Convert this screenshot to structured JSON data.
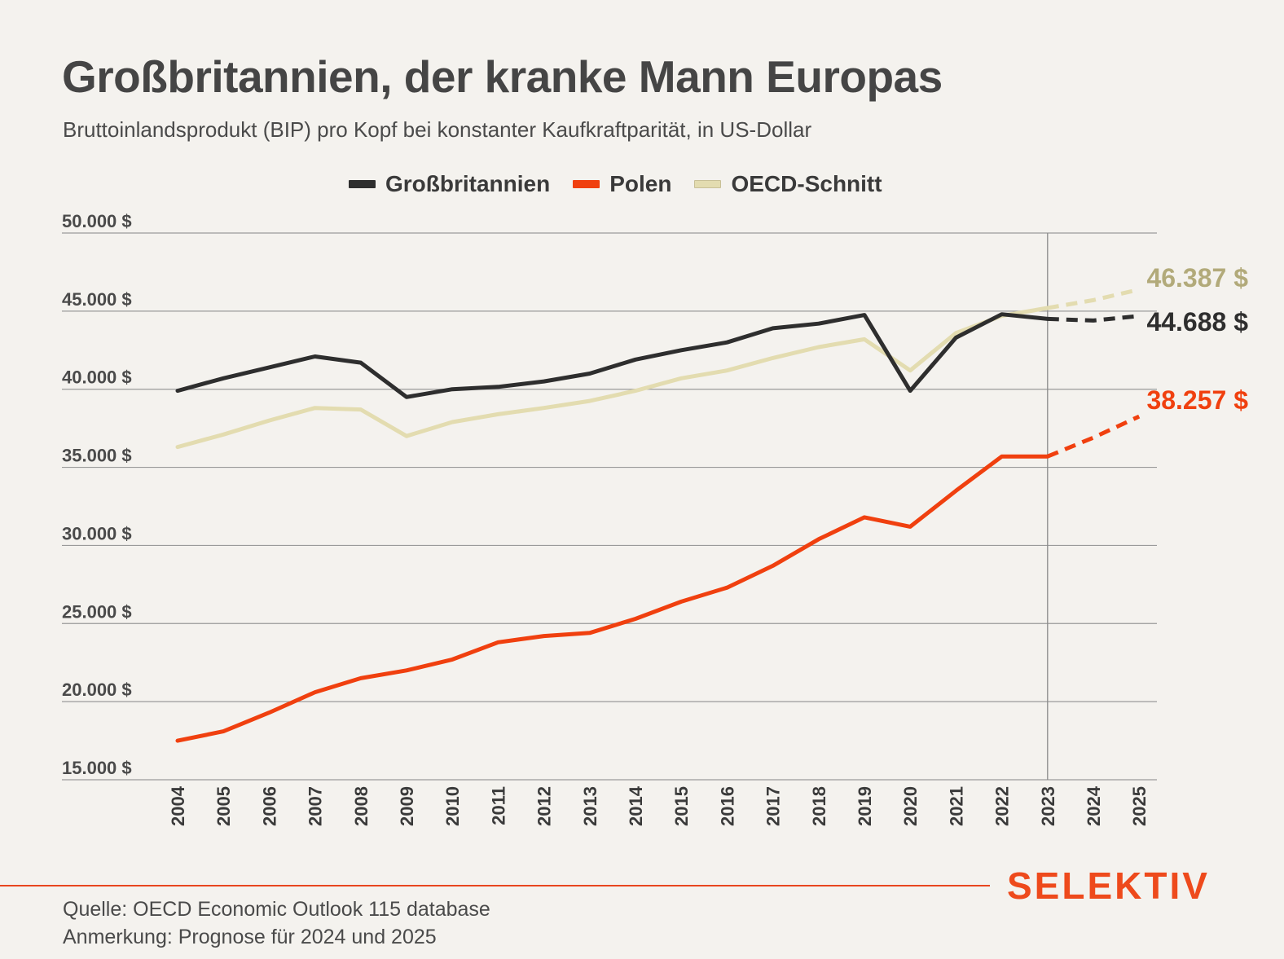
{
  "header": {
    "title": "Großbritannien, der kranke Mann Europas",
    "subtitle": "Bruttoinlandsprodukt (BIP) pro Kopf bei konstanter Kaufkraftparität, in US-Dollar"
  },
  "footer": {
    "brand": "SELEKTIV",
    "source": "Quelle: OECD Economic Outlook 115 database",
    "note": "Anmerkung: Prognose für 2024 und 2025"
  },
  "colors": {
    "uk": "#2e2e2e",
    "polen": "#f0400f",
    "oecd": "#e3dcb0",
    "oecd_label": "#b2aa7a",
    "grid": "#9a9a9a",
    "accent": "#e8461f"
  },
  "chart_data": {
    "type": "line",
    "title": "Großbritannien, der kranke Mann Europas",
    "subtitle": "Bruttoinlandsprodukt (BIP) pro Kopf bei konstanter Kaufkraftparität, in US-Dollar",
    "x": [
      "2004",
      "2005",
      "2006",
      "2007",
      "2008",
      "2009",
      "2010",
      "2011",
      "2012",
      "2013",
      "2014",
      "2015",
      "2016",
      "2017",
      "2018",
      "2019",
      "2020",
      "2021",
      "2022",
      "2023",
      "2024",
      "2025"
    ],
    "ylim": [
      15000,
      50000
    ],
    "yticks": [
      50000,
      45000,
      40000,
      35000,
      30000,
      25000,
      20000,
      15000
    ],
    "ytick_labels": [
      "50.000 $",
      "45.000 $",
      "40.000 $",
      "35.000 $",
      "30.000 $",
      "25.000 $",
      "20.000 $",
      "15.000 $"
    ],
    "forecast_from": "2023",
    "forecast_years": [
      "2024",
      "2025"
    ],
    "legend_position": "top",
    "grid": true,
    "series": [
      {
        "name": "Großbritannien",
        "color_key": "uk",
        "values": [
          39900,
          40700,
          41400,
          42100,
          41700,
          39500,
          40000,
          40150,
          40500,
          41000,
          41900,
          42500,
          43000,
          43900,
          44200,
          44750,
          39900,
          43300,
          44800,
          44500,
          44400,
          44688
        ],
        "end_label": "44.688 $"
      },
      {
        "name": "Polen",
        "color_key": "polen",
        "values": [
          17500,
          18100,
          19300,
          20600,
          21500,
          22000,
          22700,
          23800,
          24200,
          24400,
          25300,
          26400,
          27300,
          28700,
          30400,
          31800,
          31200,
          33500,
          35700,
          35700,
          36900,
          38257
        ],
        "end_label": "38.257 $"
      },
      {
        "name": "OECD-Schnitt",
        "color_key": "oecd",
        "values": [
          36300,
          37100,
          38000,
          38800,
          38700,
          37000,
          37900,
          38400,
          38800,
          39250,
          39900,
          40700,
          41200,
          42000,
          42700,
          43200,
          41200,
          43600,
          44700,
          45200,
          45700,
          46387
        ],
        "end_label": "46.387 $"
      }
    ]
  }
}
